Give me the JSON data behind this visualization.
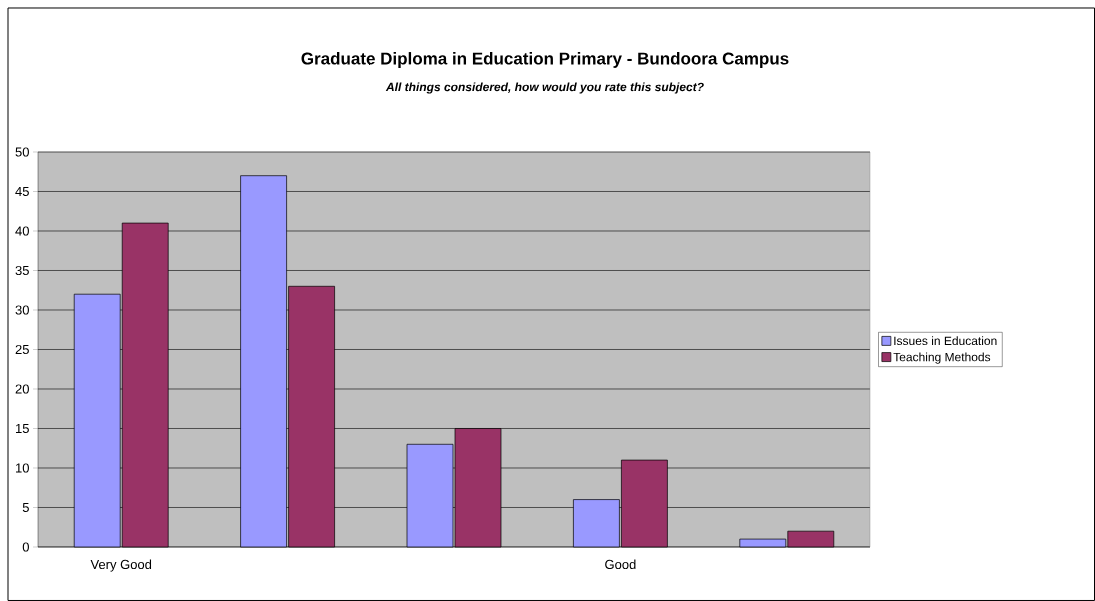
{
  "chart_data": {
    "type": "bar",
    "title": "Graduate Diploma in Education Primary - Bundoora Campus",
    "subtitle": "All things considered, how would you rate this subject?",
    "categories": [
      "Very Good",
      null,
      null,
      "Good",
      null
    ],
    "series": [
      {
        "name": "Issues in Education",
        "color": "#9999ff",
        "values": [
          32,
          47,
          13,
          6,
          1
        ]
      },
      {
        "name": "Teaching Methods",
        "color": "#993366",
        "values": [
          41,
          33,
          15,
          11,
          2
        ]
      }
    ],
    "ylim": [
      0,
      50
    ],
    "yticks": [
      0,
      5,
      10,
      15,
      20,
      25,
      30,
      35,
      40,
      45,
      50
    ],
    "grid": "y",
    "legend": "right"
  }
}
